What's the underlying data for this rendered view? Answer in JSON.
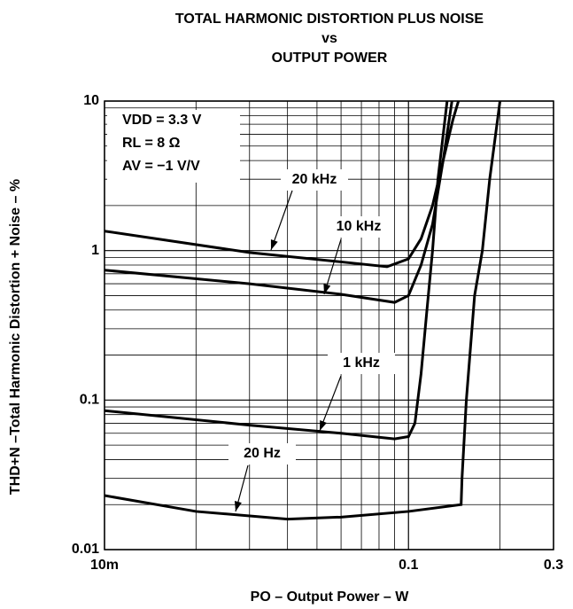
{
  "chart_data": {
    "type": "line",
    "title": [
      "TOTAL HARMONIC DISTORTION PLUS NOISE",
      "vs",
      "OUTPUT POWER"
    ],
    "x_label": "PO – Output Power – W",
    "y_label": "THD+N –Total Harmonic Distortion + Noise – %",
    "xlog": true,
    "ylog": true,
    "grid": true,
    "minor_grid": true,
    "xlim": [
      0.01,
      0.3
    ],
    "ylim": [
      0.01,
      10
    ],
    "xticks": [
      {
        "value": 0.01,
        "label": "10m"
      },
      0.1,
      0.3
    ],
    "yticks": [
      0.01,
      0.1,
      1,
      10
    ],
    "annotations": [
      "VDD = 3.3 V",
      "RL = 8 Ω",
      "AV = −1 V/V"
    ],
    "series": [
      {
        "name": "20 kHz",
        "color": "#000000",
        "x": [
          0.01,
          0.03,
          0.06,
          0.085,
          0.1,
          0.11,
          0.12,
          0.13,
          0.14,
          0.146
        ],
        "values": [
          1.35,
          0.97,
          0.84,
          0.78,
          0.88,
          1.2,
          2,
          4,
          7.5,
          10
        ]
      },
      {
        "name": "10 kHz",
        "color": "#000000",
        "x": [
          0.01,
          0.03,
          0.06,
          0.09,
          0.1,
          0.11,
          0.12,
          0.13,
          0.139
        ],
        "values": [
          0.74,
          0.6,
          0.51,
          0.45,
          0.5,
          0.8,
          1.5,
          4,
          10
        ]
      },
      {
        "name": "1 kHz",
        "color": "#000000",
        "x": [
          0.01,
          0.03,
          0.06,
          0.09,
          0.1,
          0.105,
          0.11,
          0.115,
          0.12,
          0.125,
          0.134
        ],
        "values": [
          0.085,
          0.068,
          0.06,
          0.055,
          0.057,
          0.07,
          0.15,
          0.4,
          1,
          3,
          10
        ]
      },
      {
        "name": "20 Hz",
        "color": "#000000",
        "x": [
          0.01,
          0.02,
          0.04,
          0.06,
          0.1,
          0.149,
          0.15,
          0.155,
          0.165,
          0.175,
          0.185,
          0.2
        ],
        "values": [
          0.023,
          0.018,
          0.016,
          0.0165,
          0.018,
          0.02,
          0.03,
          0.1,
          0.5,
          1,
          3,
          10
        ]
      }
    ]
  }
}
